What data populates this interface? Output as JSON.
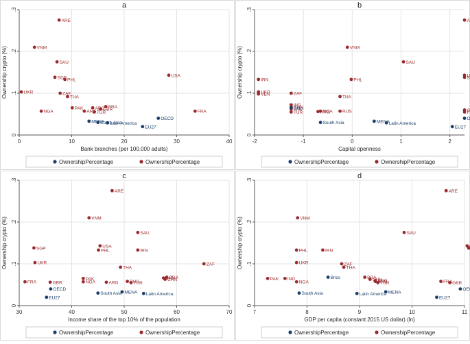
{
  "colors": {
    "red": "#9b2a2d",
    "blue": "#1a3f6b",
    "grid": "#e3e3e3",
    "frame": "#d9d9d9",
    "plot_bg": "#ffffff"
  },
  "chart_data": [
    {
      "type": "scatter",
      "title": "a",
      "xlabel": "Bank branches (per 100.000 adults)",
      "ylabel": "Ownership crypto (%)",
      "xlim": [
        0,
        40
      ],
      "ylim": [
        0,
        0.3
      ],
      "xticks": [
        "0",
        "10",
        "20",
        "30",
        "40"
      ],
      "yticks": [
        "0",
        ".1",
        ".2",
        ".3"
      ],
      "legend": [
        "OwnershipPercentage",
        "OwnershipPercentage"
      ],
      "series": [
        {
          "color": "red",
          "points": [
            {
              "label": "ARE",
              "x": 7.6,
              "y": 0.275
            },
            {
              "label": "VNM",
              "x": 2.9,
              "y": 0.21
            },
            {
              "label": "SAU",
              "x": 7.2,
              "y": 0.175
            },
            {
              "label": "USA",
              "x": 28.5,
              "y": 0.143
            },
            {
              "label": "SGP",
              "x": 6.8,
              "y": 0.138
            },
            {
              "label": "PHL",
              "x": 8.7,
              "y": 0.133
            },
            {
              "label": "UKR",
              "x": 0.4,
              "y": 0.103
            },
            {
              "label": "ZAF",
              "x": 7.8,
              "y": 0.1
            },
            {
              "label": "THA",
              "x": 9.2,
              "y": 0.092
            },
            {
              "label": "PAK",
              "x": 10.1,
              "y": 0.065
            },
            {
              "label": "BRA",
              "x": 16.5,
              "y": 0.068
            },
            {
              "label": "ARG",
              "x": 14,
              "y": 0.065
            },
            {
              "label": "GBR",
              "x": 15.5,
              "y": 0.062
            },
            {
              "label": "ARG",
              "x": 12.4,
              "y": 0.057
            },
            {
              "label": "TUR",
              "x": 14.3,
              "y": 0.055
            },
            {
              "label": "NGA",
              "x": 4.2,
              "y": 0.057
            },
            {
              "label": "FRA",
              "x": 33.5,
              "y": 0.057
            }
          ]
        },
        {
          "color": "blue",
          "points": [
            {
              "label": "OECD",
              "x": 26.5,
              "y": 0.04
            },
            {
              "label": "MENA",
              "x": 13.3,
              "y": 0.033
            },
            {
              "label": "South Asia",
              "x": 15,
              "y": 0.03
            },
            {
              "label": "Latin America",
              "x": 16.8,
              "y": 0.029
            },
            {
              "label": "EU27",
              "x": 23.5,
              "y": 0.02
            }
          ]
        }
      ]
    },
    {
      "type": "scatter",
      "title": "b",
      "xlabel": "Capital openness",
      "ylabel": "Ownership crypto (%)",
      "xlim": [
        -2,
        2.3
      ],
      "ylim": [
        0,
        0.3
      ],
      "xticks": [
        "-2",
        "-1",
        "0",
        "1",
        "2"
      ],
      "yticks": [
        "0",
        ".1",
        ".2",
        ".3"
      ],
      "legend": [
        "OwnershipPercentage",
        "OwnershipPercentage"
      ],
      "series": [
        {
          "color": "red",
          "points": [
            {
              "label": "ARE",
              "x": 2.3,
              "y": 0.275
            },
            {
              "label": "VNM",
              "x": -0.1,
              "y": 0.21
            },
            {
              "label": "SAU",
              "x": 1.05,
              "y": 0.175
            },
            {
              "label": "USA",
              "x": 2.3,
              "y": 0.143
            },
            {
              "label": "SGP",
              "x": 2.3,
              "y": 0.138
            },
            {
              "label": "IRN",
              "x": -1.92,
              "y": 0.133
            },
            {
              "label": "PHL",
              "x": -0.02,
              "y": 0.133
            },
            {
              "label": "UKR",
              "x": -1.92,
              "y": 0.103
            },
            {
              "label": "VEN",
              "x": -1.92,
              "y": 0.098
            },
            {
              "label": "ZAF",
              "x": -1.25,
              "y": 0.1
            },
            {
              "label": "THA",
              "x": -0.25,
              "y": 0.092
            },
            {
              "label": "IND",
              "x": -1.25,
              "y": 0.072
            },
            {
              "label": "CHN",
              "x": -1.25,
              "y": 0.067
            },
            {
              "label": "PAK",
              "x": -1.25,
              "y": 0.062
            },
            {
              "label": "TUR",
              "x": -1.25,
              "y": 0.055
            },
            {
              "label": "RUS",
              "x": -0.25,
              "y": 0.057
            },
            {
              "label": "ARG",
              "x": -0.7,
              "y": 0.056
            },
            {
              "label": "NGA",
              "x": -0.65,
              "y": 0.057
            },
            {
              "label": "GBR",
              "x": 2.3,
              "y": 0.06
            },
            {
              "label": "FRA",
              "x": 2.3,
              "y": 0.055
            }
          ]
        },
        {
          "color": "blue",
          "points": [
            {
              "label": "Brics",
              "x": -1.25,
              "y": 0.065
            },
            {
              "label": "South Asia",
              "x": -0.65,
              "y": 0.03
            },
            {
              "label": "MENA",
              "x": 0.45,
              "y": 0.033
            },
            {
              "label": "Latin America",
              "x": 0.7,
              "y": 0.029
            },
            {
              "label": "OECD",
              "x": 2.3,
              "y": 0.04
            },
            {
              "label": "EU27",
              "x": 2.05,
              "y": 0.02
            }
          ]
        }
      ]
    },
    {
      "type": "scatter",
      "title": "c",
      "xlabel": "Income share of the top 10% of the population",
      "ylabel": "Ownership crypto (%)",
      "xlim": [
        30,
        70
      ],
      "ylim": [
        0,
        0.3
      ],
      "xticks": [
        "30",
        "40",
        "50",
        "60",
        "70"
      ],
      "yticks": [
        "0",
        ".1",
        ".2",
        ".3"
      ],
      "legend": [
        "OwnershipPercentage",
        "OwnershipPercentage"
      ],
      "series": [
        {
          "color": "red",
          "points": [
            {
              "label": "ARE",
              "x": 47.7,
              "y": 0.275
            },
            {
              "label": "VNM",
              "x": 43.3,
              "y": 0.21
            },
            {
              "label": "SAU",
              "x": 52.6,
              "y": 0.175
            },
            {
              "label": "USA",
              "x": 45.4,
              "y": 0.143
            },
            {
              "label": "SGP",
              "x": 32.8,
              "y": 0.138
            },
            {
              "label": "PHL",
              "x": 45.1,
              "y": 0.133
            },
            {
              "label": "IRN",
              "x": 52.6,
              "y": 0.133
            },
            {
              "label": "UKR",
              "x": 33,
              "y": 0.103
            },
            {
              "label": "ZAF",
              "x": 65.2,
              "y": 0.1
            },
            {
              "label": "THA",
              "x": 49.3,
              "y": 0.092
            },
            {
              "label": "PAK",
              "x": 42.2,
              "y": 0.065
            },
            {
              "label": "NGA",
              "x": 42.2,
              "y": 0.057
            },
            {
              "label": "ARG",
              "x": 46.6,
              "y": 0.056
            },
            {
              "label": "RUS",
              "x": 50.6,
              "y": 0.058
            },
            {
              "label": "TUR",
              "x": 51.3,
              "y": 0.055
            },
            {
              "label": "BRA",
              "x": 58.1,
              "y": 0.068
            },
            {
              "label": "IND",
              "x": 57.5,
              "y": 0.066
            },
            {
              "label": "CHN",
              "x": 57.8,
              "y": 0.063
            },
            {
              "label": "GBR",
              "x": 35.9,
              "y": 0.056
            },
            {
              "label": "FRA",
              "x": 31.1,
              "y": 0.057
            }
          ]
        },
        {
          "color": "blue",
          "points": [
            {
              "label": "OECD",
              "x": 36,
              "y": 0.04
            },
            {
              "label": "EU27",
              "x": 35.2,
              "y": 0.02
            },
            {
              "label": "South Asia",
              "x": 45,
              "y": 0.03
            },
            {
              "label": "MENA",
              "x": 49.6,
              "y": 0.033
            },
            {
              "label": "Latin America",
              "x": 53.7,
              "y": 0.029
            }
          ]
        }
      ]
    },
    {
      "type": "scatter",
      "title": "d",
      "xlabel": "GDP per capita (constant 2015 US dollar) (ln)",
      "ylabel": "Ownership crypto (%)",
      "xlim": [
        7,
        11
      ],
      "ylim": [
        0,
        0.3
      ],
      "xticks": [
        "7",
        "8",
        "9",
        "10",
        "11"
      ],
      "yticks": [
        "0",
        ".1",
        ".2",
        ".3"
      ],
      "legend": [
        "OwnershipPercentage",
        "OwnershipPercentage"
      ],
      "series": [
        {
          "color": "red",
          "points": [
            {
              "label": "ARE",
              "x": 10.65,
              "y": 0.275
            },
            {
              "label": "VNM",
              "x": 7.82,
              "y": 0.21
            },
            {
              "label": "SAU",
              "x": 9.85,
              "y": 0.175
            },
            {
              "label": "USA",
              "x": 11.05,
              "y": 0.143
            },
            {
              "label": "SGP",
              "x": 11.08,
              "y": 0.138
            },
            {
              "label": "PHL",
              "x": 7.8,
              "y": 0.133
            },
            {
              "label": "IRN",
              "x": 8.3,
              "y": 0.133
            },
            {
              "label": "UKR",
              "x": 7.8,
              "y": 0.103
            },
            {
              "label": "ZAF",
              "x": 8.66,
              "y": 0.1
            },
            {
              "label": "THA",
              "x": 8.7,
              "y": 0.092
            },
            {
              "label": "PAK",
              "x": 7.25,
              "y": 0.065
            },
            {
              "label": "IND",
              "x": 7.58,
              "y": 0.065
            },
            {
              "label": "NGA",
              "x": 7.8,
              "y": 0.057
            },
            {
              "label": "BRA",
              "x": 9.1,
              "y": 0.068
            },
            {
              "label": "ARG",
              "x": 9.3,
              "y": 0.06
            },
            {
              "label": "CHN",
              "x": 9.2,
              "y": 0.063
            },
            {
              "label": "RUS",
              "x": 9.3,
              "y": 0.058
            },
            {
              "label": "TUR",
              "x": 9.35,
              "y": 0.055
            },
            {
              "label": "FRA",
              "x": 10.55,
              "y": 0.058
            },
            {
              "label": "GBR",
              "x": 10.72,
              "y": 0.055
            }
          ]
        },
        {
          "color": "blue",
          "points": [
            {
              "label": "Brics",
              "x": 8.4,
              "y": 0.068
            },
            {
              "label": "South Asia",
              "x": 7.85,
              "y": 0.03
            },
            {
              "label": "Latin America",
              "x": 8.95,
              "y": 0.029
            },
            {
              "label": "MENA",
              "x": 9.5,
              "y": 0.033
            },
            {
              "label": "OECD",
              "x": 10.92,
              "y": 0.04
            },
            {
              "label": "EU27",
              "x": 10.47,
              "y": 0.02
            }
          ]
        }
      ]
    }
  ]
}
